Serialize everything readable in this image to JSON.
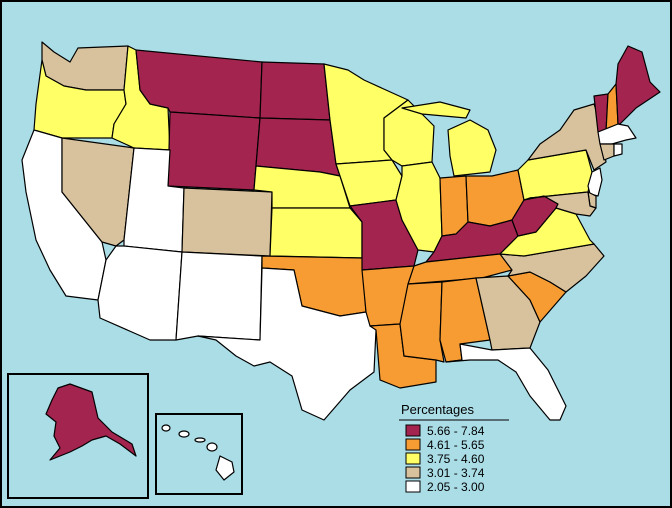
{
  "colors": {
    "ocean": "#abdde7",
    "land_outline": "#000000",
    "frame": "#000000"
  },
  "legend": {
    "title": "Percentages",
    "items": [
      {
        "label": "5.66 - 7.84",
        "color": "#a3244f"
      },
      {
        "label": "4.61 - 5.65",
        "color": "#f79c33"
      },
      {
        "label": "3.75 - 4.60",
        "color": "#ffff66"
      },
      {
        "label": "3.01 - 3.74",
        "color": "#d8c29e"
      },
      {
        "label": "2.05 - 3.00",
        "color": "#ffffff"
      }
    ]
  },
  "state_classes": {
    "WA": 3,
    "OR": 2,
    "CA": 4,
    "NV": 3,
    "ID": 2,
    "MT": 0,
    "WY": 0,
    "UT": 4,
    "AZ": 4,
    "CO": 3,
    "NM": 4,
    "ND": 0,
    "SD": 0,
    "NE": 2,
    "KS": 2,
    "OK": 1,
    "TX": 4,
    "MN": 2,
    "IA": 2,
    "MO": 0,
    "AR": 1,
    "LA": 1,
    "WI": 2,
    "IL": 2,
    "MI": 2,
    "IN": 1,
    "OH": 1,
    "KY": 0,
    "TN": 1,
    "MS": 1,
    "AL": 1,
    "GA": 3,
    "FL": 4,
    "SC": 1,
    "NC": 3,
    "VA": 2,
    "WV": 0,
    "PA": 2,
    "NY": 3,
    "VT": 0,
    "NH": 1,
    "ME": 0,
    "MA": 4,
    "CT": 3,
    "RI": 4,
    "NJ": 4,
    "DE": 3,
    "MD": 3,
    "AK": 0,
    "HI": 4
  }
}
